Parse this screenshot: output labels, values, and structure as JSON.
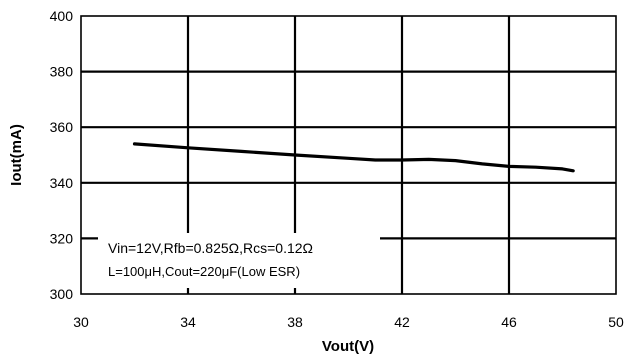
{
  "chart_data": {
    "type": "line",
    "xlabel": "Vout(V)",
    "ylabel": "Iout(mA)",
    "xlim": [
      30,
      50
    ],
    "ylim": [
      300,
      400
    ],
    "x_ticks": [
      "30",
      "34",
      "38",
      "42",
      "46",
      "50"
    ],
    "y_ticks": [
      "300",
      "320",
      "340",
      "360",
      "380",
      "400"
    ],
    "grid": true,
    "series": [
      {
        "x": [
          32.0,
          34.0,
          36.0,
          38.0,
          40.0,
          41.0,
          42.0,
          43.0,
          44.0,
          45.0,
          46.0,
          47.0,
          48.0,
          48.4
        ],
        "y": [
          354.0,
          352.6,
          351.3,
          350.0,
          348.8,
          348.2,
          348.2,
          348.4,
          348.0,
          346.8,
          345.9,
          345.6,
          345.0,
          344.3
        ],
        "color": "#000000"
      }
    ],
    "annotations": [
      "Vin=12V,Rfb=0.825Ω,Rcs=0.12Ω",
      "L=100μH,Cout=220μF(Low ESR)"
    ]
  }
}
